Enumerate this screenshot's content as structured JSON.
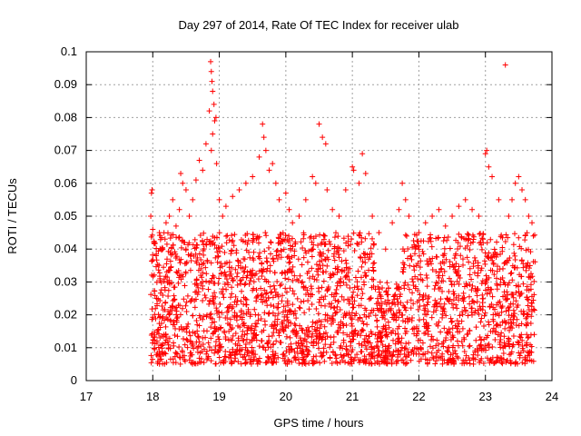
{
  "chart_data": {
    "type": "scatter",
    "title": "Day 297 of 2014, Rate Of TEC Index for receiver ulab",
    "xlabel": "GPS time / hours",
    "ylabel": "ROTI / TECUs",
    "xlim": [
      17,
      24
    ],
    "ylim": [
      0,
      0.1
    ],
    "xticks": [
      17,
      18,
      19,
      20,
      21,
      22,
      23,
      24
    ],
    "yticks": [
      0,
      0.01,
      0.02,
      0.03,
      0.04,
      0.05,
      0.06,
      0.07,
      0.08,
      0.09,
      0.1
    ],
    "ytick_labels": [
      "0",
      "0.01",
      "0.02",
      "0.03",
      "0.04",
      "0.05",
      "0.06",
      "0.07",
      "0.08",
      "0.09",
      "0.1"
    ],
    "grid": true,
    "marker": "+",
    "series": [
      {
        "name": "ROTI",
        "color": "#ff0000",
        "points": [
          [
            17.98,
            0.057
          ],
          [
            17.99,
            0.058
          ],
          [
            17.97,
            0.05
          ],
          [
            18.0,
            0.046
          ],
          [
            18.02,
            0.042
          ],
          [
            18.05,
            0.038
          ],
          [
            18.1,
            0.045
          ],
          [
            18.15,
            0.04
          ],
          [
            18.2,
            0.048
          ],
          [
            18.25,
            0.05
          ],
          [
            18.3,
            0.055
          ],
          [
            18.35,
            0.047
          ],
          [
            18.4,
            0.052
          ],
          [
            18.42,
            0.063
          ],
          [
            18.45,
            0.06
          ],
          [
            18.5,
            0.058
          ],
          [
            18.55,
            0.05
          ],
          [
            18.6,
            0.055
          ],
          [
            18.65,
            0.061
          ],
          [
            18.7,
            0.067
          ],
          [
            18.75,
            0.064
          ],
          [
            18.8,
            0.072
          ],
          [
            18.85,
            0.082
          ],
          [
            18.87,
            0.097
          ],
          [
            18.88,
            0.094
          ],
          [
            18.89,
            0.091
          ],
          [
            18.9,
            0.088
          ],
          [
            18.92,
            0.084
          ],
          [
            18.93,
            0.079
          ],
          [
            18.95,
            0.08
          ],
          [
            18.9,
            0.075
          ],
          [
            18.88,
            0.07
          ],
          [
            18.96,
            0.066
          ],
          [
            19.0,
            0.055
          ],
          [
            19.05,
            0.05
          ],
          [
            19.1,
            0.053
          ],
          [
            19.2,
            0.056
          ],
          [
            19.3,
            0.058
          ],
          [
            19.4,
            0.06
          ],
          [
            19.5,
            0.062
          ],
          [
            19.6,
            0.068
          ],
          [
            19.65,
            0.078
          ],
          [
            19.67,
            0.074
          ],
          [
            19.7,
            0.07
          ],
          [
            19.75,
            0.064
          ],
          [
            19.8,
            0.066
          ],
          [
            19.85,
            0.06
          ],
          [
            19.9,
            0.055
          ],
          [
            20.0,
            0.057
          ],
          [
            20.05,
            0.052
          ],
          [
            20.1,
            0.048
          ],
          [
            20.2,
            0.05
          ],
          [
            20.3,
            0.055
          ],
          [
            20.4,
            0.062
          ],
          [
            20.45,
            0.06
          ],
          [
            20.5,
            0.078
          ],
          [
            20.55,
            0.074
          ],
          [
            20.6,
            0.072
          ],
          [
            20.62,
            0.058
          ],
          [
            20.7,
            0.052
          ],
          [
            20.8,
            0.05
          ],
          [
            20.9,
            0.058
          ],
          [
            21.0,
            0.065
          ],
          [
            21.02,
            0.064
          ],
          [
            21.1,
            0.06
          ],
          [
            21.15,
            0.069
          ],
          [
            21.2,
            0.063
          ],
          [
            21.3,
            0.05
          ],
          [
            21.4,
            0.045
          ],
          [
            21.5,
            0.04
          ],
          [
            21.6,
            0.048
          ],
          [
            21.7,
            0.052
          ],
          [
            21.75,
            0.06
          ],
          [
            21.8,
            0.055
          ],
          [
            21.85,
            0.05
          ],
          [
            22.0,
            0.045
          ],
          [
            22.1,
            0.048
          ],
          [
            22.2,
            0.05
          ],
          [
            22.3,
            0.052
          ],
          [
            22.4,
            0.047
          ],
          [
            22.5,
            0.05
          ],
          [
            22.6,
            0.053
          ],
          [
            22.7,
            0.055
          ],
          [
            22.8,
            0.052
          ],
          [
            22.9,
            0.05
          ],
          [
            23.0,
            0.069
          ],
          [
            23.02,
            0.07
          ],
          [
            23.05,
            0.065
          ],
          [
            23.1,
            0.062
          ],
          [
            23.2,
            0.055
          ],
          [
            23.3,
            0.096
          ],
          [
            23.35,
            0.05
          ],
          [
            23.4,
            0.055
          ],
          [
            23.45,
            0.06
          ],
          [
            23.5,
            0.062
          ],
          [
            23.55,
            0.058
          ],
          [
            23.6,
            0.055
          ],
          [
            23.65,
            0.05
          ],
          [
            23.7,
            0.048
          ],
          [
            23.72,
            0.044
          ]
        ],
        "envelope": {
          "description": "dense scatter between GPS hours 17.97 and 23.75",
          "x_range": [
            17.97,
            23.75
          ],
          "y_dense_range": [
            0.005,
            0.045
          ],
          "gap_x_range": [
            21.35,
            21.75
          ],
          "gap_y_max": 0.03
        }
      }
    ]
  }
}
